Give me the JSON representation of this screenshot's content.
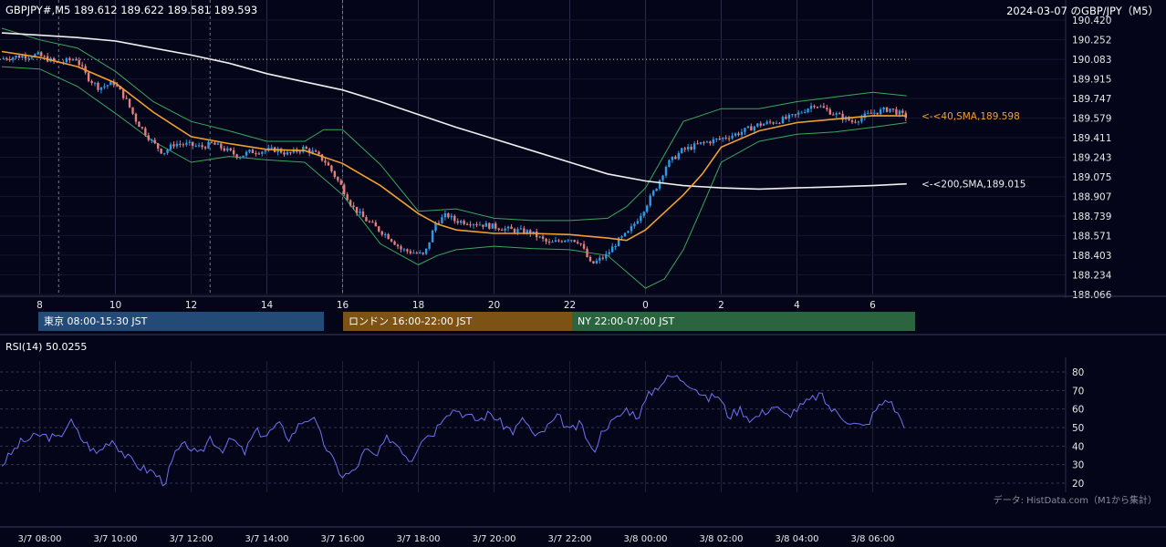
{
  "header": {
    "symbol_info": "GBPJPY#,M5 189.612 189.622 189.581 189.593",
    "date_title": "2024-03-07 のGBP/JPY（M5）"
  },
  "sessions": [
    {
      "label": "東京 08:00-15:30 JST",
      "color": "#244a77"
    },
    {
      "label": "ロンドン 16:00-22:00 JST",
      "color": "#7c5215"
    },
    {
      "label": "NY 22:00-07:00 JST",
      "color": "#2a6540"
    }
  ],
  "rsi_label": "RSI(14) 50.0255",
  "credit": "データ: HistData.com（M1から集計）",
  "colors": {
    "background": "#05051a",
    "bull_candle": "#2f9be8",
    "bear_candle": "#e08080",
    "sma40": "#f0a030",
    "sma200": "#f0f0f0",
    "bollinger": "#39a85a",
    "rsi": "#6e72f0"
  },
  "chart_data": [
    {
      "type": "candlestick",
      "title": "2024-03-07 のGBP/JPY（M5）",
      "y_ticks": [
        "190.420",
        "190.252",
        "190.083",
        "189.915",
        "189.747",
        "189.579",
        "189.411",
        "189.243",
        "189.075",
        "188.907",
        "188.739",
        "188.571",
        "188.403",
        "188.234",
        "188.066"
      ],
      "ylim": [
        188.066,
        190.42
      ],
      "x_ticks": [
        "8",
        "10",
        "12",
        "14",
        "16",
        "18",
        "20",
        "22",
        "0",
        "2",
        "4",
        "6"
      ],
      "x_unit": "hours JST (3/7 07:00 – 3/8 07:00)",
      "reference_line_level": 190.083,
      "series": [
        {
          "name": "40,SMA",
          "label": "<-<40,SMA,189.598",
          "last": 189.598,
          "points": [
            [
              7.0,
              190.15
            ],
            [
              8.0,
              190.1
            ],
            [
              9.0,
              190.02
            ],
            [
              10.0,
              189.88
            ],
            [
              11.0,
              189.63
            ],
            [
              12.0,
              189.42
            ],
            [
              13.0,
              189.36
            ],
            [
              14.0,
              189.31
            ],
            [
              15.0,
              189.3
            ],
            [
              16.0,
              189.19
            ],
            [
              17.0,
              189.0
            ],
            [
              18.0,
              188.76
            ],
            [
              18.5,
              188.67
            ],
            [
              19.0,
              188.62
            ],
            [
              20.0,
              188.59
            ],
            [
              21.0,
              188.59
            ],
            [
              22.0,
              188.58
            ],
            [
              23.0,
              188.55
            ],
            [
              23.5,
              188.53
            ],
            [
              24.0,
              188.62
            ],
            [
              25.0,
              188.92
            ],
            [
              25.5,
              189.1
            ],
            [
              26.0,
              189.33
            ],
            [
              27.0,
              189.47
            ],
            [
              28.0,
              189.54
            ],
            [
              29.0,
              189.57
            ],
            [
              30.0,
              189.6
            ],
            [
              30.9,
              189.598
            ]
          ]
        },
        {
          "name": "200,SMA",
          "label": "<-<200,SMA,189.015",
          "last": 189.015,
          "points": [
            [
              7.0,
              190.31
            ],
            [
              8.0,
              190.29
            ],
            [
              9.0,
              190.27
            ],
            [
              10.0,
              190.24
            ],
            [
              11.0,
              190.18
            ],
            [
              12.0,
              190.12
            ],
            [
              13.0,
              190.05
            ],
            [
              14.0,
              189.96
            ],
            [
              15.0,
              189.89
            ],
            [
              16.0,
              189.82
            ],
            [
              17.0,
              189.72
            ],
            [
              18.0,
              189.61
            ],
            [
              19.0,
              189.5
            ],
            [
              20.0,
              189.4
            ],
            [
              21.0,
              189.3
            ],
            [
              22.0,
              189.2
            ],
            [
              23.0,
              189.1
            ],
            [
              24.0,
              189.04
            ],
            [
              25.0,
              189.0
            ],
            [
              26.0,
              188.98
            ],
            [
              27.0,
              188.97
            ],
            [
              28.0,
              188.98
            ],
            [
              29.0,
              188.99
            ],
            [
              30.0,
              189.0
            ],
            [
              30.9,
              189.015
            ]
          ]
        },
        {
          "name": "BB upper",
          "points": [
            [
              7.0,
              190.35
            ],
            [
              8.0,
              190.25
            ],
            [
              9.0,
              190.18
            ],
            [
              10.0,
              189.98
            ],
            [
              11.0,
              189.72
            ],
            [
              12.0,
              189.55
            ],
            [
              13.0,
              189.47
            ],
            [
              14.0,
              189.38
            ],
            [
              15.0,
              189.38
            ],
            [
              15.5,
              189.48
            ],
            [
              16.0,
              189.48
            ],
            [
              17.0,
              189.18
            ],
            [
              18.0,
              188.78
            ],
            [
              19.0,
              188.8
            ],
            [
              20.0,
              188.72
            ],
            [
              21.0,
              188.7
            ],
            [
              22.0,
              188.7
            ],
            [
              23.0,
              188.72
            ],
            [
              23.5,
              188.82
            ],
            [
              24.0,
              188.98
            ],
            [
              25.0,
              189.55
            ],
            [
              26.0,
              189.66
            ],
            [
              27.0,
              189.66
            ],
            [
              28.0,
              189.72
            ],
            [
              29.0,
              189.76
            ],
            [
              30.0,
              189.8
            ],
            [
              30.9,
              189.77
            ]
          ]
        },
        {
          "name": "BB lower",
          "points": [
            [
              7.0,
              190.02
            ],
            [
              8.0,
              190.0
            ],
            [
              9.0,
              189.85
            ],
            [
              10.0,
              189.62
            ],
            [
              11.0,
              189.38
            ],
            [
              12.0,
              189.2
            ],
            [
              13.0,
              189.25
            ],
            [
              14.0,
              189.22
            ],
            [
              15.0,
              189.2
            ],
            [
              16.0,
              188.92
            ],
            [
              17.0,
              188.5
            ],
            [
              18.0,
              188.32
            ],
            [
              18.5,
              188.4
            ],
            [
              19.0,
              188.45
            ],
            [
              20.0,
              188.48
            ],
            [
              21.0,
              188.46
            ],
            [
              22.0,
              188.45
            ],
            [
              23.0,
              188.4
            ],
            [
              24.0,
              188.12
            ],
            [
              24.5,
              188.2
            ],
            [
              25.0,
              188.45
            ],
            [
              25.5,
              188.82
            ],
            [
              26.0,
              189.2
            ],
            [
              27.0,
              189.38
            ],
            [
              28.0,
              189.44
            ],
            [
              29.0,
              189.46
            ],
            [
              30.0,
              189.5
            ],
            [
              30.9,
              189.54
            ]
          ]
        },
        {
          "name": "price",
          "points": [
            [
              7.0,
              190.09
            ],
            [
              7.5,
              190.11
            ],
            [
              8.0,
              190.12
            ],
            [
              8.5,
              190.05
            ],
            [
              9.0,
              190.09
            ],
            [
              9.3,
              189.93
            ],
            [
              9.6,
              189.84
            ],
            [
              10.0,
              189.88
            ],
            [
              10.3,
              189.75
            ],
            [
              10.6,
              189.55
            ],
            [
              11.0,
              189.38
            ],
            [
              11.3,
              189.28
            ],
            [
              11.6,
              189.36
            ],
            [
              12.0,
              189.35
            ],
            [
              12.3,
              189.33
            ],
            [
              12.6,
              189.36
            ],
            [
              13.0,
              189.3
            ],
            [
              13.3,
              189.25
            ],
            [
              13.6,
              189.29
            ],
            [
              14.0,
              189.3
            ],
            [
              14.3,
              189.31
            ],
            [
              14.6,
              189.27
            ],
            [
              15.0,
              189.32
            ],
            [
              15.3,
              189.28
            ],
            [
              15.6,
              189.2
            ],
            [
              16.0,
              189.0
            ],
            [
              16.3,
              188.82
            ],
            [
              16.6,
              188.72
            ],
            [
              17.0,
              188.62
            ],
            [
              17.3,
              188.55
            ],
            [
              17.6,
              188.45
            ],
            [
              18.0,
              188.42
            ],
            [
              18.2,
              188.4
            ],
            [
              18.5,
              188.68
            ],
            [
              18.8,
              188.75
            ],
            [
              19.0,
              188.7
            ],
            [
              19.5,
              188.68
            ],
            [
              20.0,
              188.65
            ],
            [
              20.5,
              188.62
            ],
            [
              21.0,
              188.6
            ],
            [
              21.5,
              188.5
            ],
            [
              22.0,
              188.55
            ],
            [
              22.3,
              188.52
            ],
            [
              22.6,
              188.32
            ],
            [
              23.0,
              188.4
            ],
            [
              23.3,
              188.52
            ],
            [
              23.6,
              188.6
            ],
            [
              24.0,
              188.8
            ],
            [
              24.3,
              188.97
            ],
            [
              24.6,
              189.18
            ],
            [
              25.0,
              189.3
            ],
            [
              25.5,
              189.36
            ],
            [
              26.0,
              189.4
            ],
            [
              26.5,
              189.45
            ],
            [
              27.0,
              189.52
            ],
            [
              27.5,
              189.55
            ],
            [
              28.0,
              189.6
            ],
            [
              28.5,
              189.7
            ],
            [
              29.0,
              189.62
            ],
            [
              29.5,
              189.55
            ],
            [
              30.0,
              189.62
            ],
            [
              30.5,
              189.66
            ],
            [
              30.9,
              189.593
            ]
          ]
        }
      ]
    },
    {
      "type": "line",
      "title": "RSI(14) 50.0255",
      "y_ticks": [
        "80",
        "70",
        "60",
        "50",
        "40",
        "30",
        "20"
      ],
      "ylim": [
        20,
        80
      ],
      "x_ticks": [
        "3/7 08:00",
        "3/7 10:00",
        "3/7 12:00",
        "3/7 14:00",
        "3/7 16:00",
        "3/7 18:00",
        "3/7 20:00",
        "3/7 22:00",
        "3/8 00:00",
        "3/8 02:00",
        "3/8 04:00",
        "3/8 06:00"
      ],
      "series": [
        {
          "name": "RSI(14)",
          "points": [
            [
              7.0,
              30
            ],
            [
              7.5,
              42
            ],
            [
              8.0,
              46
            ],
            [
              8.5,
              44
            ],
            [
              8.8,
              54
            ],
            [
              9.1,
              44
            ],
            [
              9.5,
              36
            ],
            [
              9.9,
              44
            ],
            [
              10.3,
              34
            ],
            [
              10.7,
              28
            ],
            [
              11.0,
              26
            ],
            [
              11.3,
              20
            ],
            [
              11.6,
              37
            ],
            [
              11.9,
              41
            ],
            [
              12.2,
              34
            ],
            [
              12.5,
              45
            ],
            [
              12.8,
              38
            ],
            [
              13.1,
              44
            ],
            [
              13.4,
              36
            ],
            [
              13.7,
              48
            ],
            [
              14.0,
              46
            ],
            [
              14.3,
              52
            ],
            [
              14.6,
              44
            ],
            [
              14.9,
              53
            ],
            [
              15.2,
              56
            ],
            [
              15.5,
              42
            ],
            [
              15.8,
              30
            ],
            [
              16.0,
              24
            ],
            [
              16.3,
              26
            ],
            [
              16.6,
              38
            ],
            [
              16.9,
              34
            ],
            [
              17.2,
              45
            ],
            [
              17.5,
              40
            ],
            [
              17.8,
              32
            ],
            [
              18.1,
              45
            ],
            [
              18.4,
              47
            ],
            [
              18.7,
              58
            ],
            [
              19.0,
              60
            ],
            [
              19.3,
              56
            ],
            [
              19.6,
              54
            ],
            [
              19.9,
              58
            ],
            [
              20.2,
              52
            ],
            [
              20.5,
              48
            ],
            [
              20.8,
              55
            ],
            [
              21.1,
              44
            ],
            [
              21.4,
              50
            ],
            [
              21.7,
              56
            ],
            [
              22.0,
              48
            ],
            [
              22.3,
              52
            ],
            [
              22.6,
              36
            ],
            [
              22.9,
              50
            ],
            [
              23.2,
              54
            ],
            [
              23.5,
              60
            ],
            [
              23.8,
              56
            ],
            [
              24.1,
              68
            ],
            [
              24.4,
              74
            ],
            [
              24.7,
              78
            ],
            [
              25.0,
              76
            ],
            [
              25.3,
              72
            ],
            [
              25.6,
              65
            ],
            [
              25.9,
              68
            ],
            [
              26.2,
              56
            ],
            [
              26.5,
              60
            ],
            [
              26.8,
              54
            ],
            [
              27.1,
              58
            ],
            [
              27.4,
              62
            ],
            [
              27.7,
              56
            ],
            [
              28.0,
              60
            ],
            [
              28.3,
              64
            ],
            [
              28.6,
              68
            ],
            [
              28.9,
              60
            ],
            [
              29.2,
              56
            ],
            [
              29.5,
              52
            ],
            [
              29.8,
              50
            ],
            [
              30.1,
              60
            ],
            [
              30.4,
              66
            ],
            [
              30.7,
              56
            ],
            [
              30.9,
              50
            ]
          ]
        }
      ]
    }
  ]
}
